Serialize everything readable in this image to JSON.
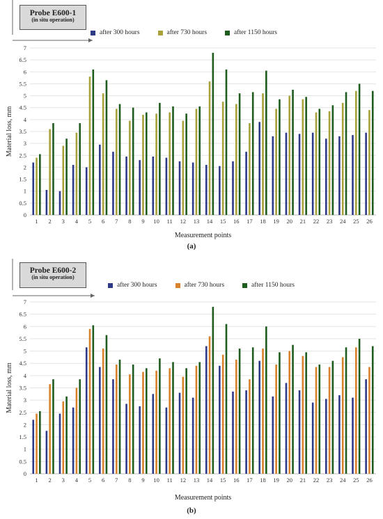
{
  "chart_data": [
    {
      "type": "bar",
      "probe_label": "Probe E600-1",
      "probe_sublabel": "(in situ operation)",
      "panel_label": "(a)",
      "xlabel": "Measurement points",
      "ylabel": "Material loss, mm",
      "ylim": [
        0,
        7
      ],
      "yticks": [
        "0",
        "0.5",
        "1",
        "1.5",
        "2",
        "2.5",
        "3",
        "3.5",
        "4",
        "4.5",
        "5",
        "5.5",
        "6",
        "6.5",
        "7"
      ],
      "grid": true,
      "legend_position": "top",
      "categories": [
        "1",
        "2",
        "3",
        "4",
        "5",
        "6",
        "7",
        "8",
        "9",
        "10",
        "11",
        "12",
        "13",
        "14",
        "15",
        "16",
        "17",
        "18",
        "19",
        "20",
        "21",
        "22",
        "23",
        "24",
        "25",
        "26"
      ],
      "series": [
        {
          "name": "after 300 hours",
          "color": "#2e3a87",
          "values": [
            2.2,
            1.05,
            1.0,
            2.1,
            2.0,
            2.95,
            2.65,
            2.45,
            2.3,
            2.45,
            2.4,
            2.25,
            2.2,
            2.1,
            2.05,
            2.25,
            2.65,
            3.9,
            3.3,
            3.45,
            3.4,
            3.45,
            3.2,
            3.3,
            3.35,
            3.45
          ]
        },
        {
          "name": "after 730 hours",
          "color": "#a9a13a",
          "values": [
            2.4,
            3.6,
            2.9,
            3.45,
            5.8,
            5.1,
            4.45,
            3.95,
            4.2,
            4.25,
            4.3,
            3.95,
            4.45,
            5.6,
            4.75,
            4.65,
            3.85,
            5.1,
            4.45,
            5.0,
            4.85,
            4.3,
            4.35,
            4.7,
            5.2,
            4.4
          ]
        },
        {
          "name": "after 1150 hours",
          "color": "#1f5c1f",
          "values": [
            2.55,
            3.85,
            3.2,
            3.85,
            6.1,
            5.65,
            4.65,
            4.5,
            4.3,
            4.7,
            4.55,
            4.25,
            4.55,
            6.8,
            6.1,
            5.1,
            5.15,
            6.05,
            4.85,
            5.25,
            4.95,
            4.45,
            4.6,
            5.15,
            5.5,
            5.2
          ]
        }
      ]
    },
    {
      "type": "bar",
      "probe_label": "Probe E600-2",
      "probe_sublabel": "(in situ operation)",
      "panel_label": "(b)",
      "xlabel": "Measurement points",
      "ylabel": "Material loss, mm",
      "ylim": [
        0,
        7
      ],
      "yticks": [
        "0",
        "0.5",
        "1",
        "1.5",
        "2",
        "2.5",
        "3",
        "3.5",
        "4",
        "4.5",
        "5",
        "5.5",
        "6",
        "6.5",
        "7"
      ],
      "grid": true,
      "legend_position": "top",
      "categories": [
        "1",
        "2",
        "3",
        "4",
        "5",
        "6",
        "7",
        "8",
        "9",
        "10",
        "11",
        "12",
        "13",
        "14",
        "15",
        "16",
        "17",
        "18",
        "19",
        "20",
        "21",
        "22",
        "23",
        "24",
        "25",
        "26"
      ],
      "series": [
        {
          "name": "after 300 hours",
          "color": "#2e3a87",
          "values": [
            2.2,
            1.75,
            2.45,
            2.7,
            5.15,
            4.35,
            3.85,
            2.85,
            2.75,
            3.25,
            2.7,
            3.3,
            3.1,
            5.2,
            4.4,
            3.35,
            3.4,
            4.6,
            3.15,
            3.7,
            3.4,
            2.9,
            3.05,
            3.2,
            3.1,
            3.85
          ]
        },
        {
          "name": "after 730 hours",
          "color": "#d9822b",
          "values": [
            2.45,
            3.65,
            2.95,
            3.5,
            5.9,
            5.1,
            4.45,
            4.05,
            4.15,
            4.2,
            4.3,
            3.95,
            4.4,
            5.6,
            4.85,
            4.65,
            3.85,
            5.1,
            4.45,
            5.0,
            4.8,
            4.35,
            4.35,
            4.75,
            5.15,
            4.35
          ]
        },
        {
          "name": "after 1150 hours",
          "color": "#1f5c1f",
          "values": [
            2.55,
            3.85,
            3.15,
            3.85,
            6.05,
            5.65,
            4.65,
            4.45,
            4.3,
            4.7,
            4.55,
            4.3,
            4.55,
            6.8,
            6.1,
            5.1,
            5.15,
            6.0,
            4.95,
            5.25,
            4.95,
            4.45,
            4.6,
            5.15,
            5.5,
            5.2
          ]
        }
      ]
    }
  ]
}
